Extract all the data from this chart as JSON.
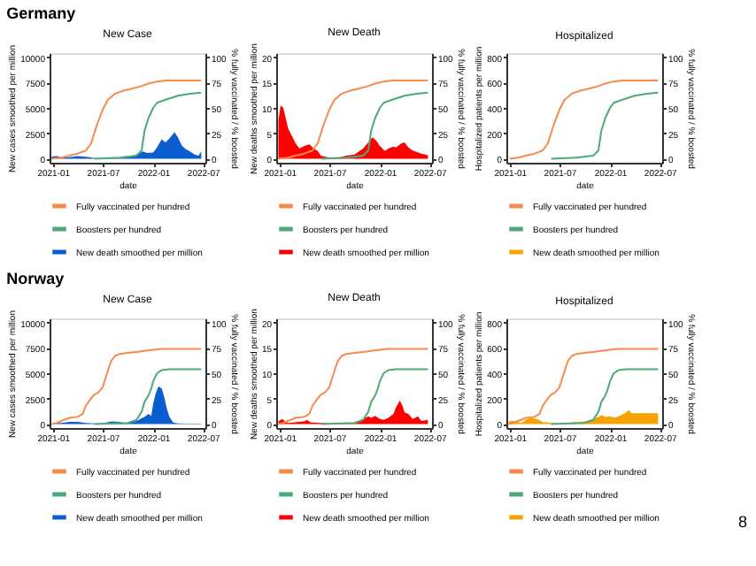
{
  "chart_data": [
    {
      "type": "line",
      "title": "New Case",
      "xlabel": "date",
      "ylabel": "New cases smoothed per million",
      "y2label": "% fully vaccinated / % boosted",
      "annotations": [
        "Germany"
      ],
      "xlim": [
        "2020-12-20",
        "2022-07-10"
      ],
      "xticks": [
        "2021-01",
        "2021-07",
        "2022-01",
        "2022-07"
      ],
      "ylim": [
        -400,
        10400
      ],
      "yticks": [
        0,
        2500,
        5000,
        7500,
        10000
      ],
      "y2lim": [
        -4,
        104
      ],
      "y2ticks": [
        0,
        25,
        50,
        75,
        100
      ],
      "grid": false,
      "legend": "bottom",
      "series": [
        {
          "name": "Fully vaccinated per hundred",
          "axis": "y2",
          "color": "#f58b4c",
          "x": [
            "2020-12-27",
            "2021-02-01",
            "2021-03-01",
            "2021-04-01",
            "2021-05-01",
            "2021-05-20",
            "2021-06-10",
            "2021-07-01",
            "2021-07-20",
            "2021-08-15",
            "2021-09-15",
            "2021-10-15",
            "2021-11-15",
            "2021-12-15",
            "2022-01-15",
            "2022-02-15",
            "2022-04-01",
            "2022-06-25"
          ],
          "values": [
            0,
            1,
            3,
            5,
            8,
            15,
            33,
            48,
            58,
            64,
            67,
            69,
            71,
            74,
            76,
            77,
            77,
            77
          ]
        },
        {
          "name": "Boosters per hundred",
          "axis": "y2",
          "color": "#4daa78",
          "x": [
            "2021-06-01",
            "2021-09-01",
            "2021-11-01",
            "2021-11-20",
            "2021-12-01",
            "2021-12-15",
            "2022-01-01",
            "2022-01-15",
            "2022-02-15",
            "2022-04-01",
            "2022-05-15",
            "2022-06-25"
          ],
          "values": [
            0,
            1,
            3,
            8,
            28,
            40,
            50,
            55,
            58,
            62,
            64,
            65
          ]
        },
        {
          "name": "New death smoothed per million",
          "type": "area",
          "axis": "y",
          "color": "#0a5ecf",
          "x": [
            "2020-12-28",
            "2021-01-15",
            "2021-02-01",
            "2021-03-01",
            "2021-04-01",
            "2021-04-20",
            "2021-05-15",
            "2021-06-01",
            "2021-07-01",
            "2021-08-01",
            "2021-09-01",
            "2021-10-01",
            "2021-11-01",
            "2021-11-25",
            "2021-12-10",
            "2022-01-01",
            "2022-01-15",
            "2022-02-01",
            "2022-02-15",
            "2022-03-01",
            "2022-03-20",
            "2022-04-01",
            "2022-04-15",
            "2022-05-01",
            "2022-05-15",
            "2022-06-01",
            "2022-06-15",
            "2022-06-25"
          ],
          "values": [
            200,
            250,
            150,
            150,
            250,
            200,
            150,
            60,
            30,
            60,
            100,
            120,
            400,
            700,
            550,
            600,
            1100,
            1900,
            1600,
            2000,
            2600,
            2100,
            1300,
            900,
            700,
            400,
            300,
            700
          ]
        }
      ]
    },
    {
      "type": "line",
      "title": "New Death",
      "xlabel": "date",
      "ylabel": "New deaths smoothed per million",
      "y2label": "% fully vaccinated / % boosted",
      "xlim": [
        "2020-12-20",
        "2022-07-10"
      ],
      "xticks": [
        "2021-01",
        "2021-07",
        "2022-01",
        "2022-07"
      ],
      "ylim": [
        -0.8,
        20.8
      ],
      "yticks": [
        0,
        5,
        10,
        15,
        20
      ],
      "y2lim": [
        -4,
        104
      ],
      "y2ticks": [
        0,
        25,
        50,
        75,
        100
      ],
      "grid": false,
      "legend": "bottom",
      "series": [
        {
          "name": "Fully vaccinated per hundred",
          "axis": "y2",
          "color": "#f58b4c",
          "x": [
            "2020-12-27",
            "2021-02-01",
            "2021-03-01",
            "2021-04-01",
            "2021-05-01",
            "2021-05-20",
            "2021-06-10",
            "2021-07-01",
            "2021-07-20",
            "2021-08-15",
            "2021-09-15",
            "2021-10-15",
            "2021-11-15",
            "2021-12-15",
            "2022-01-15",
            "2022-02-15",
            "2022-04-01",
            "2022-06-25"
          ],
          "values": [
            0,
            1,
            3,
            5,
            8,
            15,
            33,
            48,
            58,
            64,
            67,
            69,
            71,
            74,
            76,
            77,
            77,
            77
          ]
        },
        {
          "name": "Boosters per hundred",
          "axis": "y2",
          "color": "#4daa78",
          "x": [
            "2021-06-01",
            "2021-09-01",
            "2021-11-01",
            "2021-11-20",
            "2021-12-01",
            "2021-12-15",
            "2022-01-01",
            "2022-01-15",
            "2022-02-15",
            "2022-04-01",
            "2022-05-15",
            "2022-06-25"
          ],
          "values": [
            0,
            1,
            3,
            8,
            28,
            40,
            50,
            55,
            58,
            62,
            64,
            65
          ]
        },
        {
          "name": "New death smoothed per million",
          "type": "area",
          "axis": "y",
          "color": "#ff0000",
          "x": [
            "2020-12-28",
            "2021-01-05",
            "2021-01-15",
            "2021-02-01",
            "2021-03-01",
            "2021-03-15",
            "2021-04-01",
            "2021-04-20",
            "2021-05-01",
            "2021-05-20",
            "2021-06-01",
            "2021-07-01",
            "2021-08-01",
            "2021-09-01",
            "2021-10-01",
            "2021-11-01",
            "2021-11-25",
            "2021-12-05",
            "2021-12-20",
            "2022-01-01",
            "2022-01-20",
            "2022-02-01",
            "2022-02-20",
            "2022-03-01",
            "2022-03-20",
            "2022-04-01",
            "2022-04-15",
            "2022-05-01",
            "2022-06-01",
            "2022-06-25"
          ],
          "values": [
            7.5,
            10.5,
            10,
            6,
            3,
            2,
            2.5,
            2.8,
            2.2,
            1.5,
            0.6,
            0.2,
            0.2,
            0.6,
            0.8,
            2,
            3.5,
            4.2,
            3.5,
            2.5,
            1.5,
            2,
            2.4,
            2.2,
            3,
            3.2,
            2.2,
            1.6,
            1,
            0.7
          ]
        }
      ]
    },
    {
      "type": "line",
      "title": "Hospitalized",
      "xlabel": "date",
      "ylabel": "Hospitalized patients per million",
      "y2label": "% fully vaccinated / % boosted",
      "xlim": [
        "2020-12-20",
        "2022-07-10"
      ],
      "xticks": [
        "2021-01",
        "2021-07",
        "2022-01",
        "2022-07"
      ],
      "ylim": [
        -32,
        832
      ],
      "yticks": [
        0,
        200,
        400,
        600,
        800
      ],
      "y2lim": [
        -4,
        104
      ],
      "y2ticks": [
        0,
        25,
        50,
        75,
        100
      ],
      "grid": false,
      "legend": "bottom",
      "series": [
        {
          "name": "Fully vaccinated per hundred",
          "axis": "y2",
          "color": "#f58b4c",
          "x": [
            "2021-01-01",
            "2021-02-01",
            "2021-03-01",
            "2021-04-01",
            "2021-05-01",
            "2021-05-20",
            "2021-06-10",
            "2021-07-01",
            "2021-07-20",
            "2021-08-15",
            "2021-09-15",
            "2021-10-15",
            "2021-11-15",
            "2021-12-15",
            "2022-01-15",
            "2022-02-15",
            "2022-04-01",
            "2022-06-25"
          ],
          "values": [
            0,
            1,
            3,
            5,
            8,
            15,
            33,
            48,
            58,
            64,
            67,
            69,
            71,
            74,
            76,
            77,
            77,
            77
          ]
        },
        {
          "name": "Boosters per hundred",
          "axis": "y2",
          "color": "#4daa78",
          "x": [
            "2021-06-01",
            "2021-09-01",
            "2021-11-01",
            "2021-11-20",
            "2021-12-01",
            "2021-12-15",
            "2022-01-01",
            "2022-01-15",
            "2022-02-15",
            "2022-04-01",
            "2022-05-15",
            "2022-06-25"
          ],
          "values": [
            0,
            1,
            3,
            8,
            28,
            40,
            50,
            55,
            58,
            62,
            64,
            65
          ]
        },
        {
          "name": "New death smoothed per million",
          "type": "area",
          "axis": "y",
          "color": "#f5a300"
        }
      ]
    },
    {
      "type": "line",
      "title": "New Case",
      "xlabel": "date",
      "ylabel": "New cases smoothed per million",
      "y2label": "% fully vaccinated / % boosted",
      "annotations": [
        "Norway"
      ],
      "xlim": [
        "2020-12-20",
        "2022-07-10"
      ],
      "xticks": [
        "2021-01",
        "2021-07",
        "2022-01",
        "2022-07"
      ],
      "ylim": [
        -400,
        10400
      ],
      "yticks": [
        0,
        2500,
        5000,
        7500,
        10000
      ],
      "y2lim": [
        -4,
        104
      ],
      "y2ticks": [
        0,
        25,
        50,
        75,
        100
      ],
      "grid": false,
      "legend": "bottom",
      "series": [
        {
          "name": "Fully vaccinated per hundred",
          "axis": "y2",
          "color": "#f58b4c",
          "x": [
            "2020-12-28",
            "2021-01-15",
            "2021-02-01",
            "2021-03-01",
            "2021-04-01",
            "2021-04-20",
            "2021-05-01",
            "2021-05-20",
            "2021-06-01",
            "2021-06-15",
            "2021-07-01",
            "2021-07-15",
            "2021-08-01",
            "2021-08-15",
            "2021-09-01",
            "2021-10-01",
            "2021-11-01",
            "2021-12-01",
            "2022-01-01",
            "2022-02-01",
            "2022-04-01",
            "2022-06-25"
          ],
          "values": [
            0,
            1,
            3,
            6,
            7,
            10,
            18,
            25,
            29,
            31,
            36,
            48,
            62,
            67,
            69,
            70,
            71,
            72,
            73,
            74,
            74,
            74
          ]
        },
        {
          "name": "Boosters per hundred",
          "axis": "y2",
          "color": "#4daa78",
          "x": [
            "2021-06-01",
            "2021-10-01",
            "2021-11-01",
            "2021-11-20",
            "2021-12-01",
            "2021-12-15",
            "2021-12-25",
            "2022-01-01",
            "2022-01-15",
            "2022-02-01",
            "2022-03-01",
            "2022-06-25"
          ],
          "values": [
            0,
            1,
            4,
            12,
            22,
            28,
            35,
            42,
            50,
            53,
            54,
            54
          ]
        },
        {
          "name": "New death smoothed per million",
          "type": "area",
          "axis": "y",
          "color": "#0a5ecf",
          "x": [
            "2021-01-01",
            "2021-02-01",
            "2021-03-01",
            "2021-04-01",
            "2021-05-01",
            "2021-06-01",
            "2021-07-01",
            "2021-08-01",
            "2021-09-01",
            "2021-09-20",
            "2021-10-01",
            "2021-11-01",
            "2021-12-01",
            "2021-12-15",
            "2021-12-25",
            "2022-01-01",
            "2022-01-10",
            "2022-01-20",
            "2022-02-01",
            "2022-02-10",
            "2022-02-20",
            "2022-03-01",
            "2022-03-15",
            "2022-04-01",
            "2022-05-01",
            "2022-06-01",
            "2022-06-25"
          ],
          "values": [
            100,
            100,
            200,
            200,
            100,
            60,
            60,
            250,
            200,
            80,
            150,
            300,
            700,
            1000,
            800,
            2000,
            3000,
            3700,
            3500,
            2700,
            1500,
            700,
            150,
            60,
            40,
            40,
            40
          ]
        }
      ]
    },
    {
      "type": "line",
      "title": "New Death",
      "xlabel": "date",
      "ylabel": "New deaths smoothed per million",
      "y2label": "% fully vaccinated / % boosted",
      "xlim": [
        "2020-12-20",
        "2022-07-10"
      ],
      "xticks": [
        "2021-01",
        "2021-07",
        "2022-01",
        "2022-07"
      ],
      "ylim": [
        -0.8,
        20.8
      ],
      "yticks": [
        0,
        5,
        10,
        15,
        20
      ],
      "y2lim": [
        -4,
        104
      ],
      "y2ticks": [
        0,
        25,
        50,
        75,
        100
      ],
      "grid": false,
      "legend": "bottom",
      "series": [
        {
          "name": "Fully vaccinated per hundred",
          "axis": "y2",
          "color": "#f58b4c",
          "x": [
            "2020-12-28",
            "2021-01-15",
            "2021-02-01",
            "2021-03-01",
            "2021-04-01",
            "2021-04-20",
            "2021-05-01",
            "2021-05-20",
            "2021-06-01",
            "2021-06-15",
            "2021-07-01",
            "2021-07-15",
            "2021-08-01",
            "2021-08-15",
            "2021-09-01",
            "2021-10-01",
            "2021-11-01",
            "2021-12-01",
            "2022-01-01",
            "2022-02-01",
            "2022-04-01",
            "2022-06-25"
          ],
          "values": [
            0,
            1,
            3,
            6,
            7,
            10,
            18,
            25,
            29,
            31,
            36,
            48,
            62,
            67,
            69,
            70,
            71,
            72,
            73,
            74,
            74,
            74
          ]
        },
        {
          "name": "Boosters per hundred",
          "axis": "y2",
          "color": "#4daa78",
          "x": [
            "2021-06-01",
            "2021-10-01",
            "2021-11-01",
            "2021-11-20",
            "2021-12-01",
            "2021-12-15",
            "2021-12-25",
            "2022-01-01",
            "2022-01-15",
            "2022-02-01",
            "2022-03-01",
            "2022-06-25"
          ],
          "values": [
            0,
            1,
            4,
            12,
            22,
            28,
            35,
            42,
            50,
            53,
            54,
            54
          ]
        },
        {
          "name": "New death smoothed per million",
          "type": "area",
          "axis": "y",
          "color": "#ff0000",
          "x": [
            "2020-12-28",
            "2021-01-10",
            "2021-01-25",
            "2021-02-01",
            "2021-04-01",
            "2021-04-10",
            "2021-04-25",
            "2021-05-01",
            "2021-07-01",
            "2021-09-01",
            "2021-10-01",
            "2021-11-01",
            "2021-11-20",
            "2021-12-01",
            "2021-12-15",
            "2022-01-01",
            "2022-01-15",
            "2022-02-01",
            "2022-02-20",
            "2022-03-01",
            "2022-03-15",
            "2022-03-25",
            "2022-04-01",
            "2022-04-15",
            "2022-05-01",
            "2022-05-20",
            "2022-06-01",
            "2022-06-25"
          ],
          "values": [
            0.5,
            1.0,
            0.4,
            0.2,
            0.5,
            0.8,
            0.3,
            0.3,
            0.1,
            0.1,
            0.3,
            1.0,
            1.5,
            1.2,
            1.6,
            1.0,
            0.8,
            1.2,
            2.0,
            3.3,
            4.6,
            3.5,
            2.3,
            2.0,
            1.0,
            1.5,
            0.6,
            0.8
          ]
        }
      ]
    },
    {
      "type": "line",
      "title": "Hospitalized",
      "xlabel": "date",
      "ylabel": "Hospitalized patients per million",
      "y2label": "% fully vaccinated / % boosted",
      "annotations": [
        "8"
      ],
      "xlim": [
        "2020-12-20",
        "2022-07-10"
      ],
      "xticks": [
        "2021-01",
        "2021-07",
        "2022-01",
        "2022-07"
      ],
      "ylim": [
        -32,
        832
      ],
      "yticks": [
        0,
        200,
        400,
        600,
        800
      ],
      "y2lim": [
        -4,
        104
      ],
      "y2ticks": [
        0,
        25,
        50,
        75,
        100
      ],
      "grid": false,
      "legend": "bottom",
      "series": [
        {
          "name": "Fully vaccinated per hundred",
          "axis": "y2",
          "color": "#f58b4c",
          "x": [
            "2020-12-28",
            "2021-01-15",
            "2021-02-01",
            "2021-03-01",
            "2021-04-01",
            "2021-04-20",
            "2021-05-01",
            "2021-05-20",
            "2021-06-01",
            "2021-06-15",
            "2021-07-01",
            "2021-07-15",
            "2021-08-01",
            "2021-08-15",
            "2021-09-01",
            "2021-10-01",
            "2021-11-01",
            "2021-12-01",
            "2022-01-01",
            "2022-02-01",
            "2022-04-01",
            "2022-06-25"
          ],
          "values": [
            0,
            1,
            3,
            6,
            7,
            10,
            18,
            25,
            29,
            31,
            36,
            48,
            62,
            67,
            69,
            70,
            71,
            72,
            73,
            74,
            74,
            74
          ]
        },
        {
          "name": "Boosters per hundred",
          "axis": "y2",
          "color": "#4daa78",
          "x": [
            "2021-06-01",
            "2021-10-01",
            "2021-11-01",
            "2021-11-20",
            "2021-12-01",
            "2021-12-15",
            "2021-12-25",
            "2022-01-01",
            "2022-01-15",
            "2022-02-01",
            "2022-03-01",
            "2022-06-25"
          ],
          "values": [
            0,
            1,
            4,
            12,
            22,
            28,
            35,
            42,
            50,
            53,
            54,
            54
          ]
        },
        {
          "name": "New death smoothed per million",
          "type": "area",
          "axis": "y",
          "color": "#f5a300",
          "x": [
            "2020-12-28",
            "2021-01-15",
            "2021-02-01",
            "2021-02-15",
            "2021-03-01",
            "2021-03-20",
            "2021-04-01",
            "2021-04-20",
            "2021-05-01",
            "2021-06-01",
            "2021-07-01",
            "2021-08-01",
            "2021-09-01",
            "2021-10-01",
            "2021-11-01",
            "2021-11-25",
            "2021-12-01",
            "2021-12-15",
            "2022-01-01",
            "2022-01-20",
            "2022-02-01",
            "2022-03-01",
            "2022-03-10",
            "2022-03-20",
            "2022-04-01",
            "2022-06-25"
          ],
          "values": [
            20,
            25,
            15,
            10,
            35,
            50,
            45,
            30,
            15,
            10,
            5,
            10,
            15,
            20,
            40,
            60,
            70,
            55,
            60,
            50,
            60,
            90,
            110,
            85,
            85,
            85
          ]
        }
      ]
    }
  ]
}
